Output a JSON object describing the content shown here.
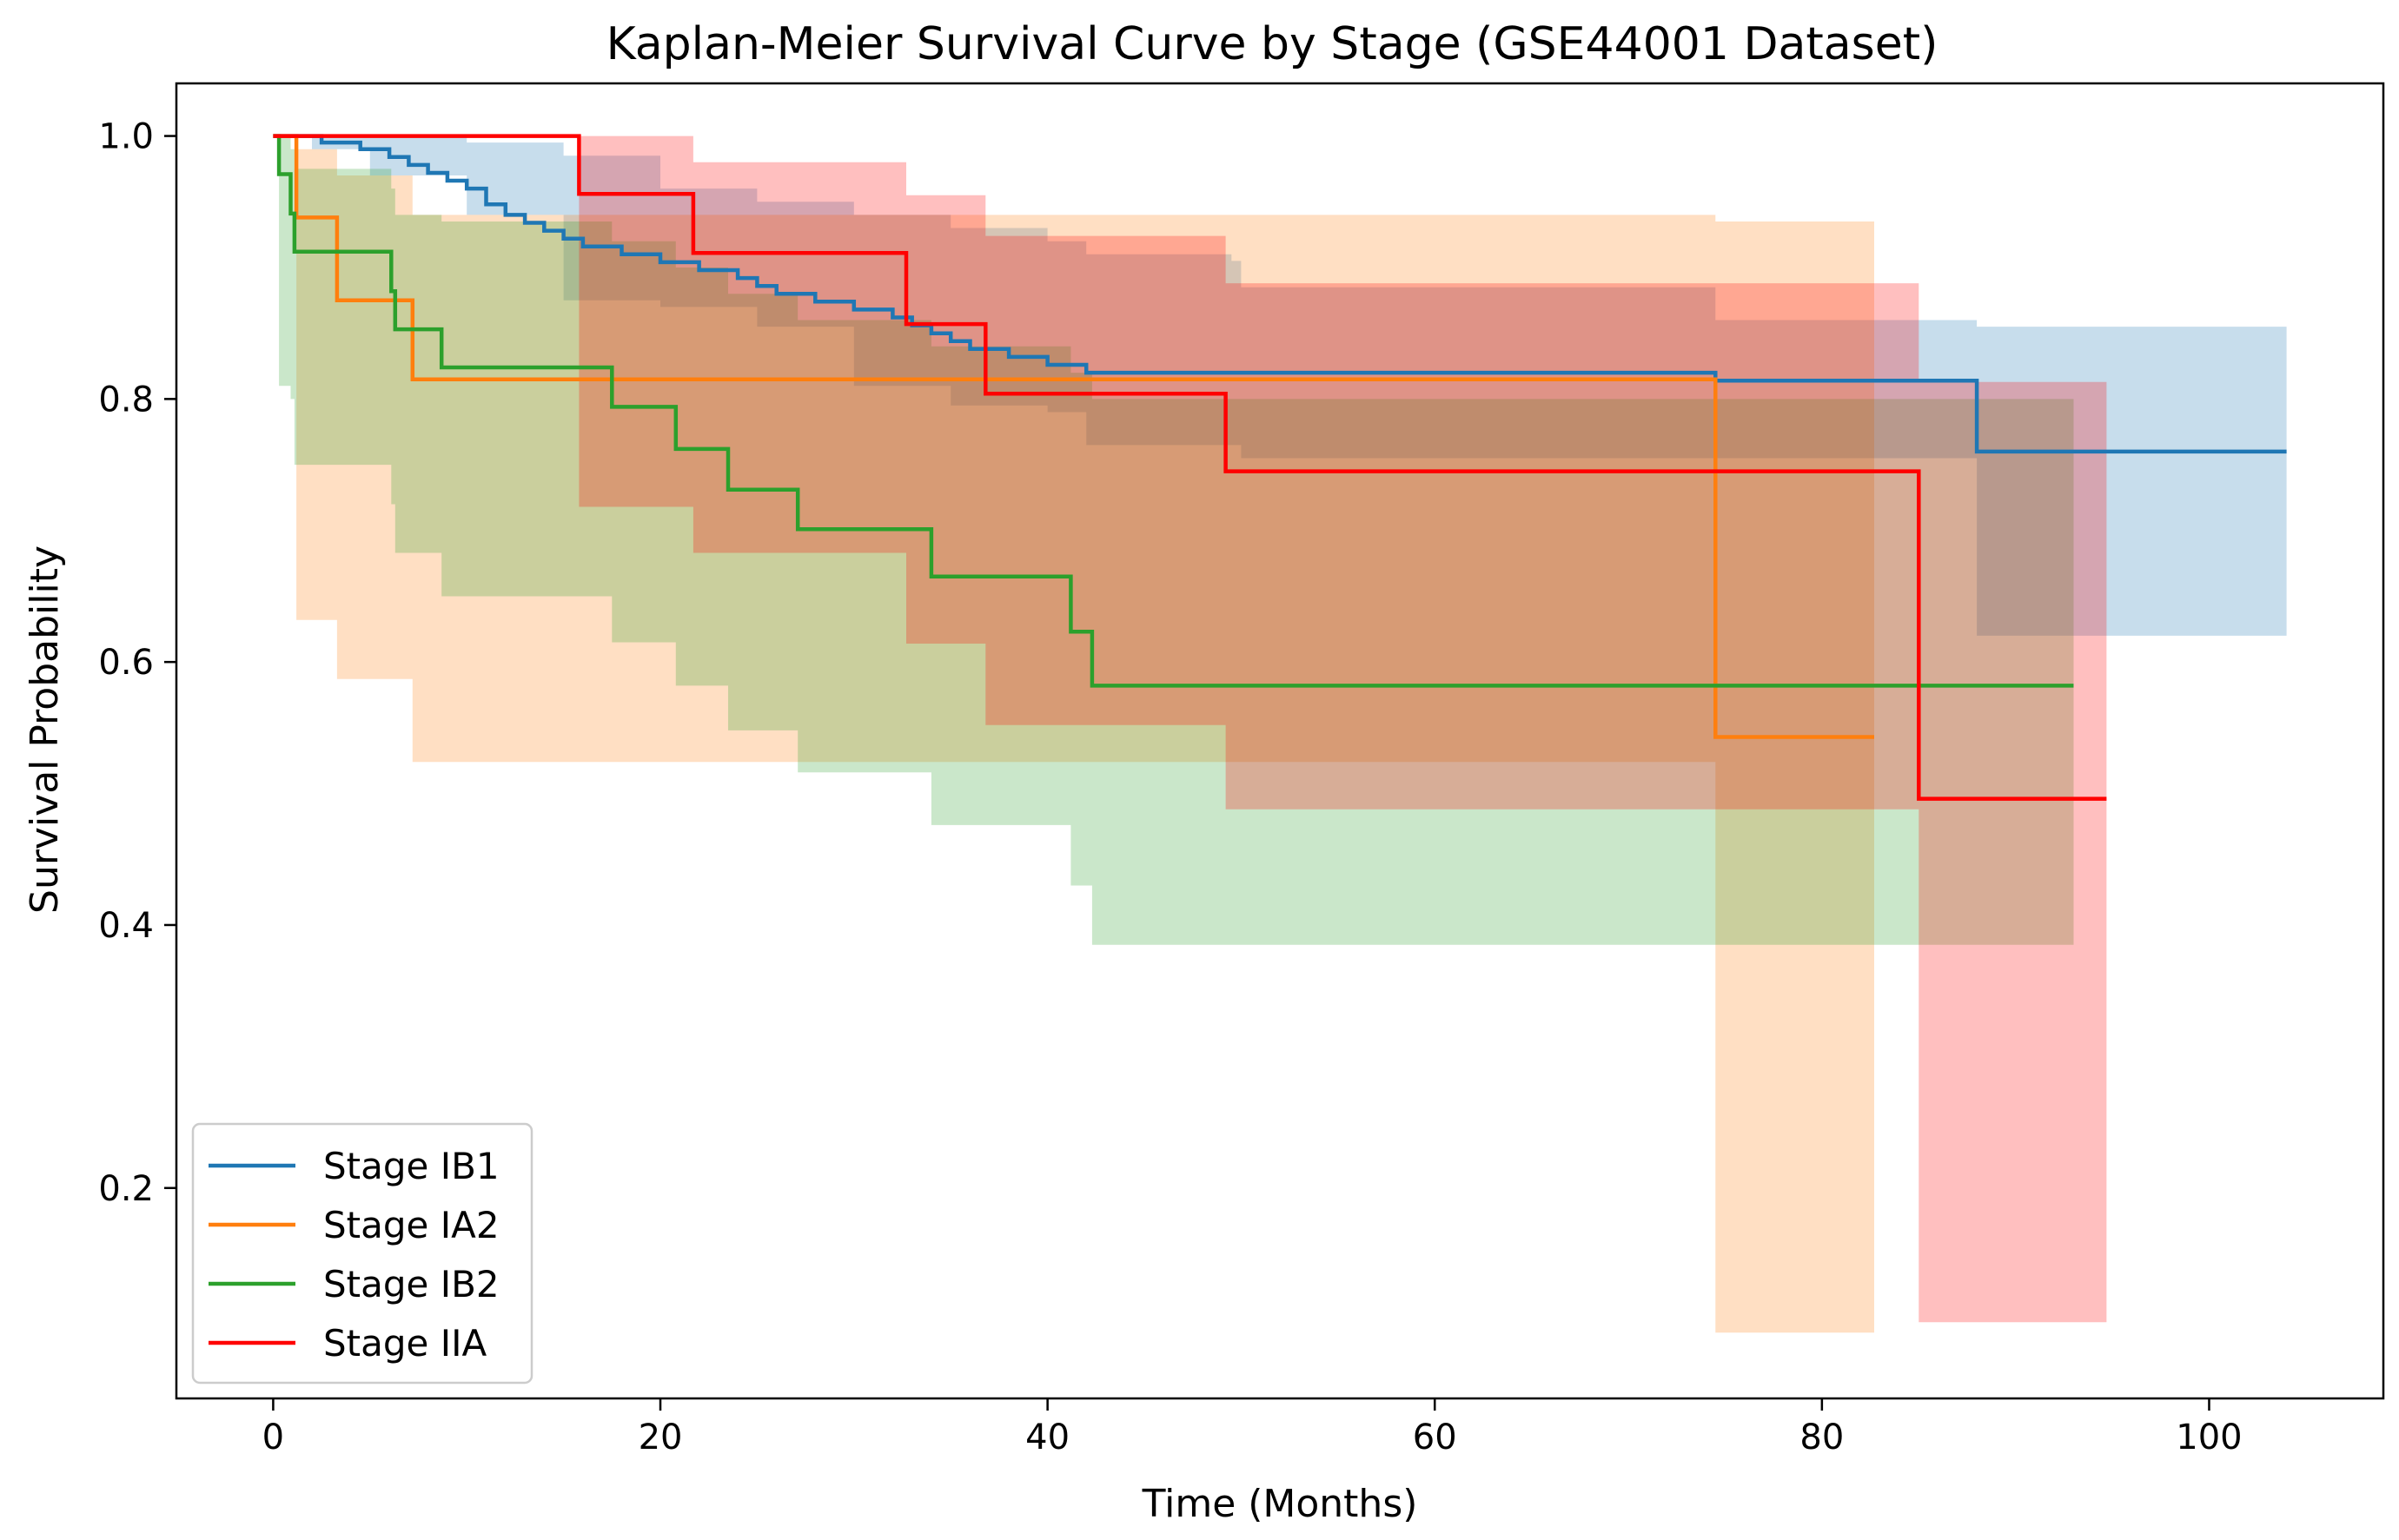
{
  "chart_data": {
    "type": "line",
    "subtype": "kaplan-meier-step",
    "title": "Kaplan-Meier Survival Curve by Stage (GSE44001 Dataset)",
    "xlabel": "Time (Months)",
    "ylabel": "Survival Probability",
    "xlim": [
      -5,
      109
    ],
    "ylim": [
      0.04,
      1.04
    ],
    "xticks": [
      0,
      20,
      40,
      60,
      80,
      100
    ],
    "xtick_labels": [
      "0",
      "20",
      "40",
      "60",
      "80",
      "100"
    ],
    "yticks": [
      0.2,
      0.4,
      0.6,
      0.8,
      1.0
    ],
    "ytick_labels": [
      "0.2",
      "0.4",
      "0.6",
      "0.8",
      "1.0"
    ],
    "legend_position": "lower-left",
    "grid": false,
    "series": [
      {
        "name": "Stage IB1",
        "color": "#1f77b4",
        "x": [
          0,
          2.5,
          4.5,
          6,
          7,
          8,
          9,
          10,
          11,
          12,
          13,
          14,
          15,
          16,
          18,
          20,
          22,
          24,
          25,
          26,
          28,
          30,
          32,
          33,
          34,
          35,
          36,
          38,
          40,
          42,
          45,
          49.5,
          74.5,
          88
        ],
        "y": [
          1.0,
          0.995,
          0.99,
          0.984,
          0.978,
          0.972,
          0.966,
          0.96,
          0.948,
          0.94,
          0.934,
          0.928,
          0.922,
          0.916,
          0.91,
          0.904,
          0.898,
          0.892,
          0.886,
          0.88,
          0.874,
          0.868,
          0.862,
          0.856,
          0.85,
          0.844,
          0.838,
          0.832,
          0.826,
          0.82,
          0.82,
          0.82,
          0.814,
          0.76
        ],
        "ci_x": [
          0,
          2,
          5,
          10,
          15,
          20,
          25,
          30,
          35,
          40,
          42,
          49.5,
          50,
          74.5,
          88,
          104
        ],
        "ci_lower": [
          1.0,
          0.99,
          0.97,
          0.94,
          0.875,
          0.87,
          0.855,
          0.81,
          0.795,
          0.79,
          0.765,
          0.765,
          0.755,
          0.755,
          0.62,
          0.62
        ],
        "ci_upper": [
          1.0,
          1.0,
          1.0,
          0.995,
          0.985,
          0.96,
          0.95,
          0.94,
          0.93,
          0.92,
          0.91,
          0.905,
          0.885,
          0.86,
          0.855,
          0.853
        ],
        "end_x": 104
      },
      {
        "name": "Stage IA2",
        "color": "#ff7f0e",
        "x": [
          0,
          1.2,
          3.3,
          7.2,
          74.5,
          82.7
        ],
        "y": [
          1.0,
          0.938,
          0.875,
          0.815,
          0.543,
          0.543
        ],
        "ci_x": [
          0,
          1.2,
          3.3,
          7.2,
          74.5,
          82.7
        ],
        "ci_lower": [
          1.0,
          0.632,
          0.587,
          0.524,
          0.09,
          0.09
        ],
        "ci_upper": [
          1.0,
          0.99,
          0.97,
          0.94,
          0.935,
          0.856
        ],
        "end_x": 82.7
      },
      {
        "name": "Stage IB2",
        "color": "#2ca02c",
        "x": [
          0,
          0.3,
          0.9,
          1.1,
          6.1,
          6.3,
          8.7,
          17.5,
          20.8,
          23.5,
          27.1,
          34,
          41.2,
          42.3
        ],
        "y": [
          1.0,
          0.971,
          0.941,
          0.912,
          0.882,
          0.853,
          0.824,
          0.794,
          0.762,
          0.731,
          0.701,
          0.665,
          0.623,
          0.582
        ],
        "ci_x": [
          0,
          0.3,
          0.9,
          1.1,
          6.1,
          6.3,
          8.7,
          17.5,
          20.8,
          23.5,
          27.1,
          34,
          41.2,
          42.3,
          93
        ],
        "ci_lower": [
          1.0,
          0.81,
          0.8,
          0.75,
          0.72,
          0.683,
          0.65,
          0.615,
          0.582,
          0.548,
          0.516,
          0.476,
          0.43,
          0.385,
          0.385
        ],
        "ci_upper": [
          1.0,
          1.0,
          0.99,
          0.975,
          0.96,
          0.94,
          0.935,
          0.92,
          0.9,
          0.88,
          0.86,
          0.84,
          0.82,
          0.8,
          0.737
        ],
        "end_x": 93
      },
      {
        "name": "Stage IIA",
        "color": "#ff0000",
        "x": [
          0,
          15.8,
          21.7,
          32.7,
          36.8,
          49.2,
          85
        ],
        "y": [
          1.0,
          0.956,
          0.911,
          0.857,
          0.804,
          0.745,
          0.496
        ],
        "ci_x": [
          0,
          15.8,
          21.7,
          32.7,
          36.8,
          49.2,
          85,
          94.7
        ],
        "ci_lower": [
          1.0,
          0.718,
          0.683,
          0.614,
          0.552,
          0.488,
          0.098,
          0.098
        ],
        "ci_upper": [
          1.0,
          1.0,
          0.98,
          0.955,
          0.924,
          0.888,
          0.813,
          0.813
        ],
        "end_x": 94.7
      }
    ]
  }
}
